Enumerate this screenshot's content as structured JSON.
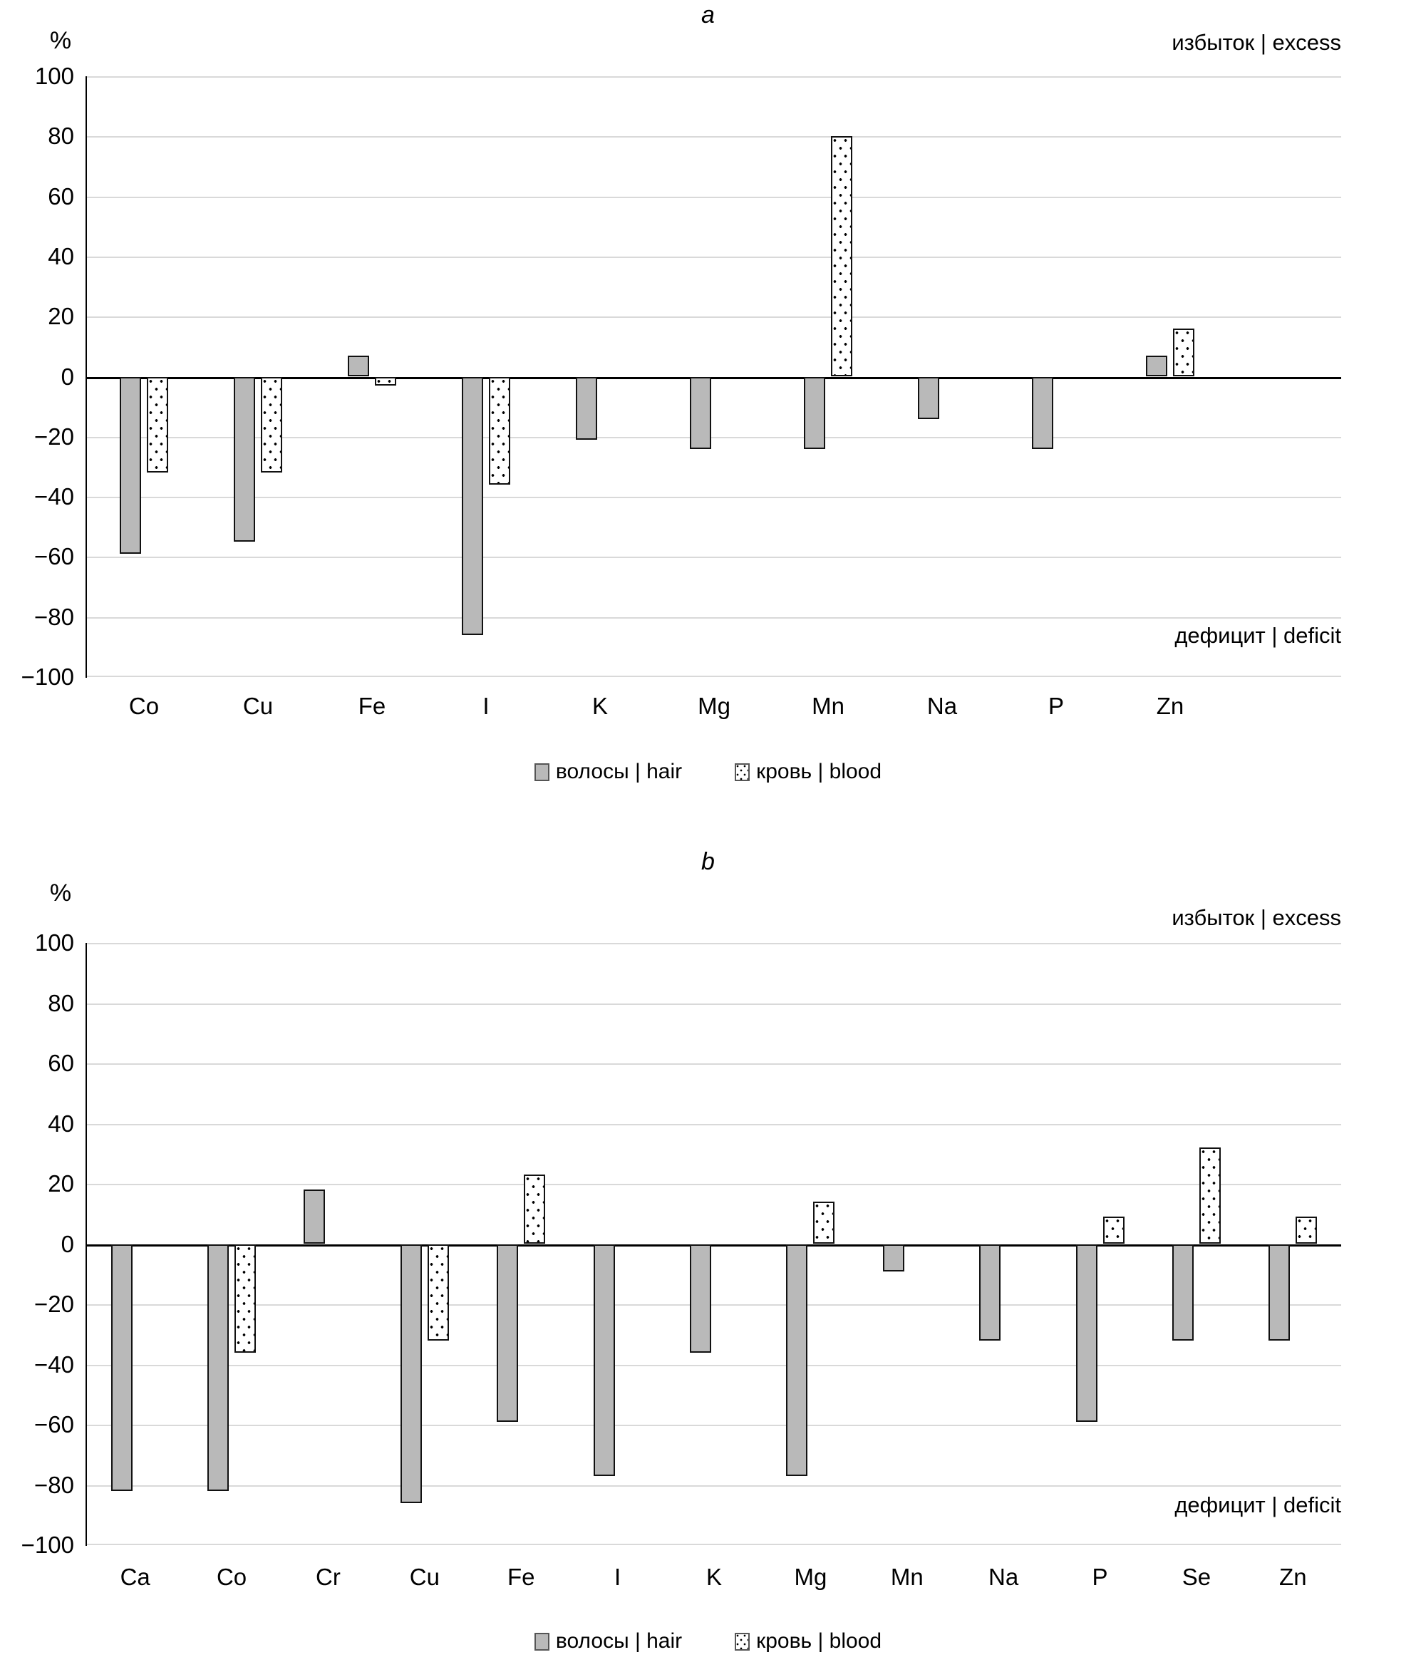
{
  "chart_data": [
    {
      "type": "bar",
      "title": "a",
      "ylabel": "%",
      "ylim": [
        -100,
        100
      ],
      "ytick_step": 20,
      "grid": true,
      "legend_position": "bottom",
      "annotations": {
        "excess": "избыток | excess",
        "deficit": "дефицит | deficit"
      },
      "legend": [
        "волосы | hair",
        "кровь | blood"
      ],
      "categories": [
        "Co",
        "Cu",
        "Fe",
        "I",
        "K",
        "Mg",
        "Mn",
        "Na",
        "P",
        "Zn"
      ],
      "series": [
        {
          "name": "волосы | hair",
          "values": [
            -59,
            -55,
            7,
            -86,
            -21,
            -24,
            -24,
            -14,
            -24,
            7
          ]
        },
        {
          "name": "кровь | blood",
          "values": [
            -32,
            -32,
            -3,
            -36,
            null,
            null,
            80,
            null,
            null,
            16
          ]
        }
      ]
    },
    {
      "type": "bar",
      "title": "b",
      "ylabel": "%",
      "ylim": [
        -100,
        100
      ],
      "ytick_step": 20,
      "grid": true,
      "legend_position": "bottom",
      "annotations": {
        "excess": "избыток | excess",
        "deficit": "дефицит | deficit"
      },
      "legend": [
        "волосы | hair",
        "кровь | blood"
      ],
      "categories": [
        "Ca",
        "Co",
        "Cr",
        "Cu",
        "Fe",
        "I",
        "K",
        "Mg",
        "Mn",
        "Na",
        "P",
        "Se",
        "Zn"
      ],
      "series": [
        {
          "name": "волосы | hair",
          "values": [
            -82,
            -82,
            18,
            -86,
            -59,
            -77,
            -36,
            -77,
            -9,
            -32,
            -59,
            -32,
            -32
          ]
        },
        {
          "name": "кровь | blood",
          "values": [
            null,
            -36,
            null,
            -32,
            23,
            null,
            null,
            14,
            null,
            null,
            9,
            32,
            9
          ]
        }
      ]
    }
  ]
}
